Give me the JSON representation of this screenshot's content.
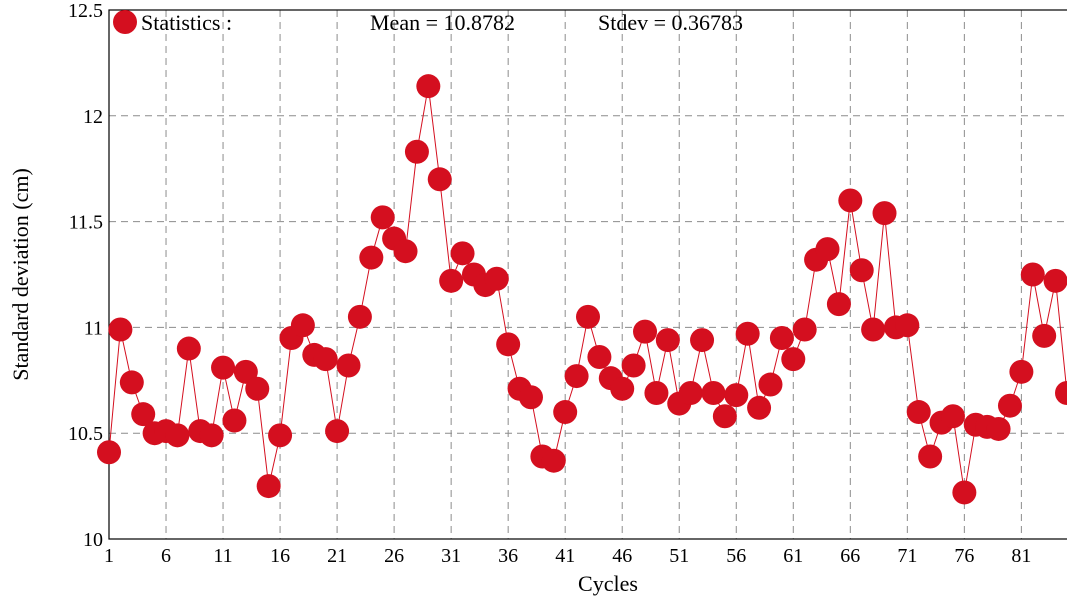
{
  "chart_data": {
    "type": "line",
    "xlabel": "Cycles",
    "ylabel": "Standard deviation (cm)",
    "xlim": [
      1,
      85
    ],
    "ylim": [
      10,
      12.5
    ],
    "xticks": [
      1,
      6,
      11,
      16,
      21,
      26,
      31,
      36,
      41,
      46,
      51,
      56,
      61,
      66,
      71,
      76,
      81
    ],
    "yticks": [
      10,
      10.5,
      11,
      11.5,
      12,
      12.5
    ],
    "grid": true,
    "legend": {
      "placement": "top-left",
      "label": "Statistics :",
      "mean_text": "Mean = 10.8782",
      "stdev_text": "Stdev = 0.36783"
    },
    "color": "#d40f1f",
    "series": [
      {
        "x": [
          1,
          2,
          3,
          4,
          5,
          6,
          7,
          8,
          9,
          10,
          11,
          12,
          13,
          14,
          15,
          16,
          17,
          18,
          19,
          20,
          21,
          22,
          23,
          24,
          25,
          26,
          27,
          28,
          29,
          30,
          31,
          32,
          33,
          34,
          35,
          36,
          37,
          38,
          39,
          40,
          41,
          42,
          43,
          44,
          45,
          46,
          47,
          48,
          49,
          50,
          51,
          52,
          53,
          54,
          55,
          56,
          57,
          58,
          59,
          60,
          61,
          62,
          63,
          64,
          65,
          66,
          67,
          68,
          69,
          70,
          71,
          72,
          73,
          74,
          75,
          76,
          77,
          78,
          79,
          80,
          81,
          82,
          83,
          84,
          85
        ],
        "values": [
          10.41,
          10.99,
          10.74,
          10.59,
          10.5,
          10.51,
          10.49,
          10.9,
          10.51,
          10.49,
          10.81,
          10.56,
          10.79,
          10.71,
          10.25,
          10.49,
          10.95,
          11.01,
          10.87,
          10.85,
          10.51,
          10.82,
          11.05,
          11.33,
          11.52,
          11.42,
          11.36,
          11.83,
          12.14,
          11.7,
          11.22,
          11.35,
          11.25,
          11.2,
          11.23,
          10.92,
          10.71,
          10.67,
          10.39,
          10.37,
          10.6,
          10.77,
          11.05,
          10.86,
          10.76,
          10.71,
          10.82,
          10.98,
          10.69,
          10.94,
          10.64,
          10.69,
          10.94,
          10.69,
          10.58,
          10.68,
          10.97,
          10.62,
          10.73,
          10.95,
          10.85,
          10.99,
          11.32,
          11.37,
          11.11,
          11.6,
          11.27,
          10.99,
          11.54,
          11.0,
          11.01,
          10.6,
          10.39,
          10.55,
          10.58,
          10.22,
          10.54,
          10.53,
          10.52,
          10.63,
          10.79,
          11.25,
          10.96,
          11.22,
          10.69
        ]
      }
    ]
  }
}
